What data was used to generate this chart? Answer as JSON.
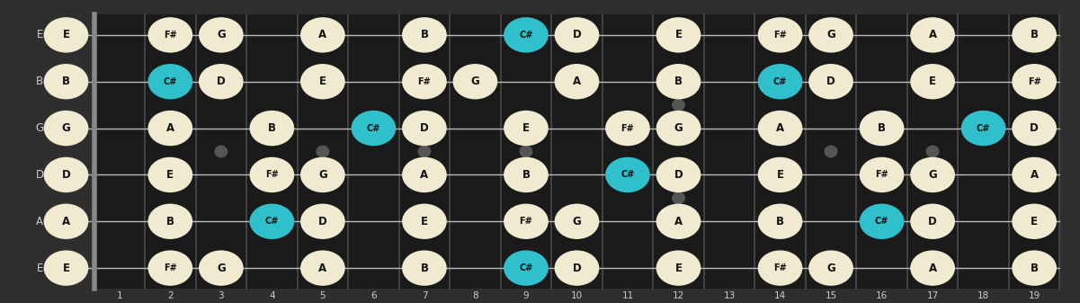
{
  "bg_color": "#2e2e2e",
  "fretboard_color": "#1a1a1a",
  "fret_color": "#4a4a4a",
  "nut_color": "#888888",
  "string_color": "#bbbbbb",
  "open_note_color": "#f0ead0",
  "highlight_color": "#30c0cc",
  "note_text_color": "#111111",
  "string_label_color": "#cccccc",
  "fret_label_color": "#cccccc",
  "dot_color": "#555555",
  "num_strings": 6,
  "num_frets": 19,
  "string_names": [
    "E",
    "B",
    "G",
    "D",
    "A",
    "E"
  ],
  "notes": [
    {
      "string": 0,
      "fret": 0,
      "note": "E",
      "highlight": false
    },
    {
      "string": 0,
      "fret": 2,
      "note": "F#",
      "highlight": false
    },
    {
      "string": 0,
      "fret": 3,
      "note": "G",
      "highlight": false
    },
    {
      "string": 0,
      "fret": 5,
      "note": "A",
      "highlight": false
    },
    {
      "string": 0,
      "fret": 7,
      "note": "B",
      "highlight": false
    },
    {
      "string": 0,
      "fret": 9,
      "note": "C#",
      "highlight": true
    },
    {
      "string": 0,
      "fret": 10,
      "note": "D",
      "highlight": false
    },
    {
      "string": 0,
      "fret": 12,
      "note": "E",
      "highlight": false
    },
    {
      "string": 0,
      "fret": 14,
      "note": "F#",
      "highlight": false
    },
    {
      "string": 0,
      "fret": 15,
      "note": "G",
      "highlight": false
    },
    {
      "string": 0,
      "fret": 17,
      "note": "A",
      "highlight": false
    },
    {
      "string": 0,
      "fret": 19,
      "note": "B",
      "highlight": false
    },
    {
      "string": 1,
      "fret": 0,
      "note": "B",
      "highlight": false
    },
    {
      "string": 1,
      "fret": 2,
      "note": "C#",
      "highlight": true
    },
    {
      "string": 1,
      "fret": 3,
      "note": "D",
      "highlight": false
    },
    {
      "string": 1,
      "fret": 5,
      "note": "E",
      "highlight": false
    },
    {
      "string": 1,
      "fret": 7,
      "note": "F#",
      "highlight": false
    },
    {
      "string": 1,
      "fret": 8,
      "note": "G",
      "highlight": false
    },
    {
      "string": 1,
      "fret": 10,
      "note": "A",
      "highlight": false
    },
    {
      "string": 1,
      "fret": 12,
      "note": "B",
      "highlight": false
    },
    {
      "string": 1,
      "fret": 14,
      "note": "C#",
      "highlight": true
    },
    {
      "string": 1,
      "fret": 15,
      "note": "D",
      "highlight": false
    },
    {
      "string": 1,
      "fret": 17,
      "note": "E",
      "highlight": false
    },
    {
      "string": 1,
      "fret": 19,
      "note": "F#",
      "highlight": false
    },
    {
      "string": 2,
      "fret": 0,
      "note": "G",
      "highlight": false
    },
    {
      "string": 2,
      "fret": 2,
      "note": "A",
      "highlight": false
    },
    {
      "string": 2,
      "fret": 4,
      "note": "B",
      "highlight": false
    },
    {
      "string": 2,
      "fret": 6,
      "note": "C#",
      "highlight": true
    },
    {
      "string": 2,
      "fret": 7,
      "note": "D",
      "highlight": false
    },
    {
      "string": 2,
      "fret": 9,
      "note": "E",
      "highlight": false
    },
    {
      "string": 2,
      "fret": 11,
      "note": "F#",
      "highlight": false
    },
    {
      "string": 2,
      "fret": 12,
      "note": "G",
      "highlight": false
    },
    {
      "string": 2,
      "fret": 14,
      "note": "A",
      "highlight": false
    },
    {
      "string": 2,
      "fret": 16,
      "note": "B",
      "highlight": false
    },
    {
      "string": 2,
      "fret": 18,
      "note": "C#",
      "highlight": true
    },
    {
      "string": 2,
      "fret": 19,
      "note": "D",
      "highlight": false
    },
    {
      "string": 3,
      "fret": 0,
      "note": "D",
      "highlight": false
    },
    {
      "string": 3,
      "fret": 2,
      "note": "E",
      "highlight": false
    },
    {
      "string": 3,
      "fret": 4,
      "note": "F#",
      "highlight": false
    },
    {
      "string": 3,
      "fret": 5,
      "note": "G",
      "highlight": false
    },
    {
      "string": 3,
      "fret": 7,
      "note": "A",
      "highlight": false
    },
    {
      "string": 3,
      "fret": 9,
      "note": "B",
      "highlight": false
    },
    {
      "string": 3,
      "fret": 11,
      "note": "C#",
      "highlight": true
    },
    {
      "string": 3,
      "fret": 12,
      "note": "D",
      "highlight": false
    },
    {
      "string": 3,
      "fret": 14,
      "note": "E",
      "highlight": false
    },
    {
      "string": 3,
      "fret": 16,
      "note": "F#",
      "highlight": false
    },
    {
      "string": 3,
      "fret": 17,
      "note": "G",
      "highlight": false
    },
    {
      "string": 3,
      "fret": 19,
      "note": "A",
      "highlight": false
    },
    {
      "string": 4,
      "fret": 0,
      "note": "A",
      "highlight": false
    },
    {
      "string": 4,
      "fret": 2,
      "note": "B",
      "highlight": false
    },
    {
      "string": 4,
      "fret": 4,
      "note": "C#",
      "highlight": true
    },
    {
      "string": 4,
      "fret": 5,
      "note": "D",
      "highlight": false
    },
    {
      "string": 4,
      "fret": 7,
      "note": "E",
      "highlight": false
    },
    {
      "string": 4,
      "fret": 9,
      "note": "F#",
      "highlight": false
    },
    {
      "string": 4,
      "fret": 10,
      "note": "G",
      "highlight": false
    },
    {
      "string": 4,
      "fret": 12,
      "note": "A",
      "highlight": false
    },
    {
      "string": 4,
      "fret": 14,
      "note": "B",
      "highlight": false
    },
    {
      "string": 4,
      "fret": 16,
      "note": "C#",
      "highlight": true
    },
    {
      "string": 4,
      "fret": 17,
      "note": "D",
      "highlight": false
    },
    {
      "string": 4,
      "fret": 19,
      "note": "E",
      "highlight": false
    },
    {
      "string": 5,
      "fret": 0,
      "note": "E",
      "highlight": false
    },
    {
      "string": 5,
      "fret": 2,
      "note": "F#",
      "highlight": false
    },
    {
      "string": 5,
      "fret": 3,
      "note": "G",
      "highlight": false
    },
    {
      "string": 5,
      "fret": 5,
      "note": "A",
      "highlight": false
    },
    {
      "string": 5,
      "fret": 7,
      "note": "B",
      "highlight": false
    },
    {
      "string": 5,
      "fret": 9,
      "note": "C#",
      "highlight": true
    },
    {
      "string": 5,
      "fret": 10,
      "note": "D",
      "highlight": false
    },
    {
      "string": 5,
      "fret": 12,
      "note": "E",
      "highlight": false
    },
    {
      "string": 5,
      "fret": 14,
      "note": "F#",
      "highlight": false
    },
    {
      "string": 5,
      "fret": 15,
      "note": "G",
      "highlight": false
    },
    {
      "string": 5,
      "fret": 17,
      "note": "A",
      "highlight": false
    },
    {
      "string": 5,
      "fret": 19,
      "note": "B",
      "highlight": false
    }
  ],
  "position_dots": [
    {
      "fret": 3,
      "double": false
    },
    {
      "fret": 5,
      "double": false
    },
    {
      "fret": 7,
      "double": false
    },
    {
      "fret": 9,
      "double": false
    },
    {
      "fret": 12,
      "double": true
    },
    {
      "fret": 15,
      "double": false
    },
    {
      "fret": 17,
      "double": false
    }
  ]
}
